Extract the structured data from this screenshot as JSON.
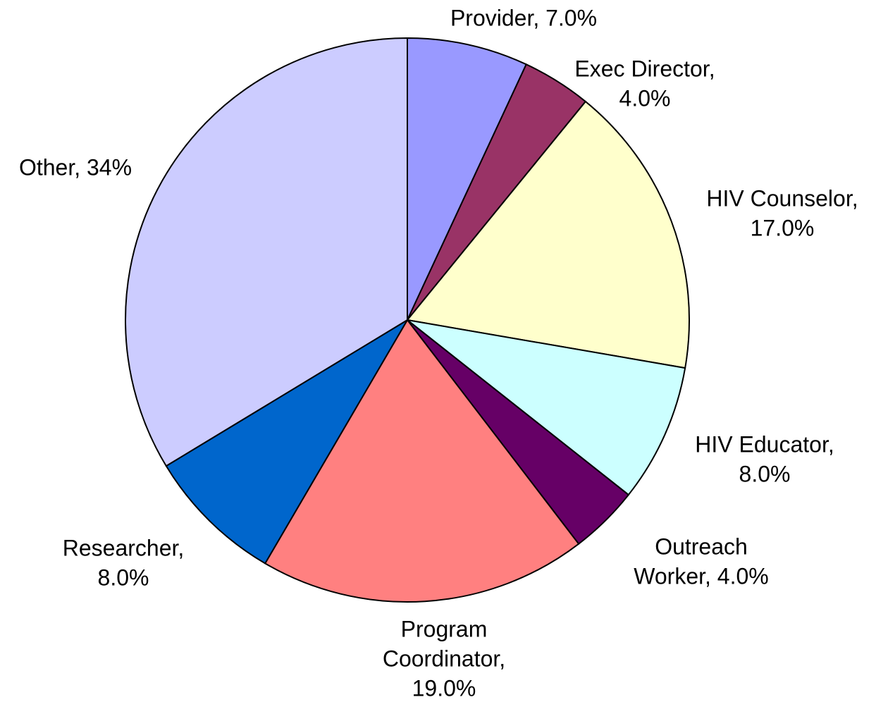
{
  "chart_data": {
    "type": "pie",
    "labels": [
      [
        "Provider, 7.0%"
      ],
      [
        "Exec Director,",
        "4.0%"
      ],
      [
        "HIV Counselor,",
        "17.0%"
      ],
      [
        "HIV Educator,",
        "8.0%"
      ],
      [
        "Outreach",
        "Worker, 4.0%"
      ],
      [
        "Program",
        "Coordinator,",
        "19.0%"
      ],
      [
        "Researcher,",
        "8.0%"
      ],
      [
        "Other, 34%"
      ]
    ],
    "values": [
      7,
      4,
      17,
      8,
      4,
      19,
      8,
      34
    ],
    "colors": [
      "#9999ff",
      "#993366",
      "#ffffcc",
      "#ccffff",
      "#660066",
      "#ff8080",
      "#0066cc",
      "#ccccff"
    ]
  }
}
